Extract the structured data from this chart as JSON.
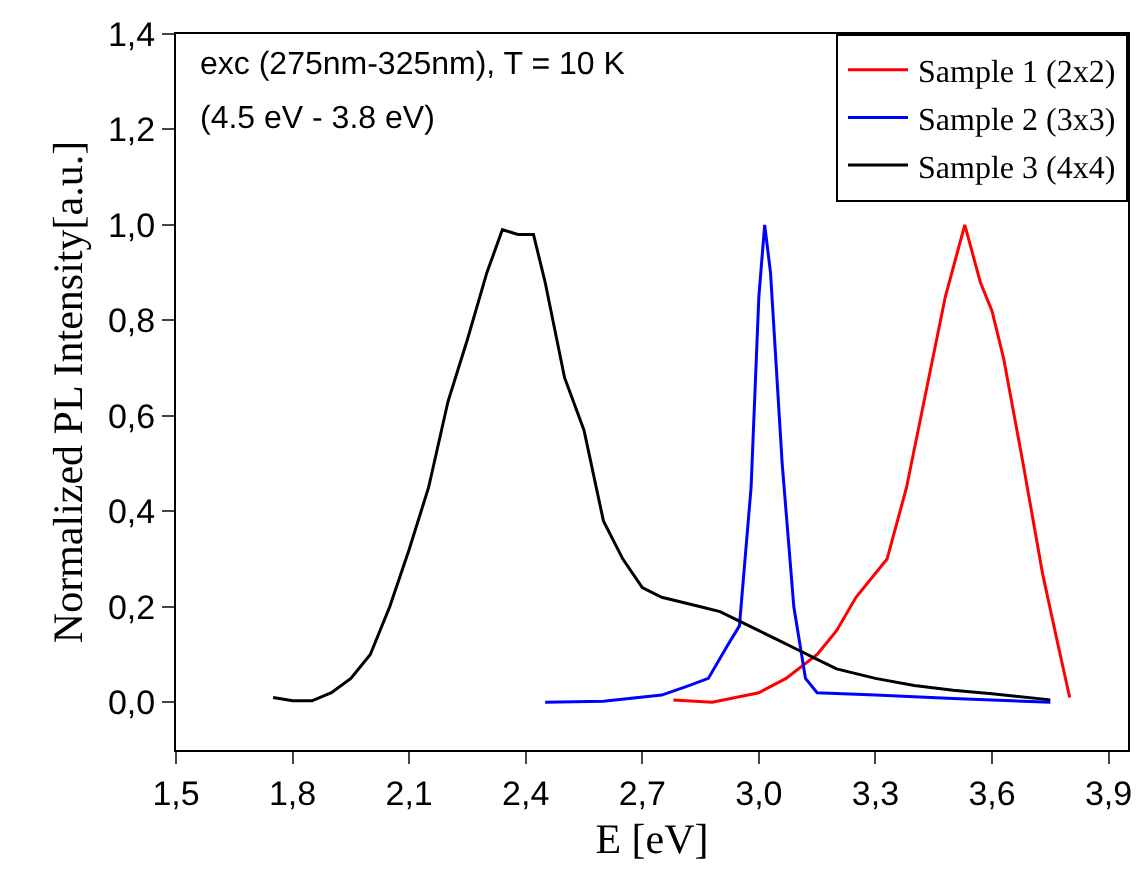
{
  "chart_data": {
    "type": "line",
    "xlabel": "E [eV]",
    "ylabel": "Normalized PL Intensity[a.u.]",
    "annotations": [
      "exc (275nm-325nm), T = 10 K",
      "(4.5 eV - 3.8 eV)"
    ],
    "xlim": [
      1.5,
      3.95
    ],
    "ylim": [
      -0.1,
      1.4
    ],
    "xticks": [
      {
        "value": 1.5,
        "label": "1,5"
      },
      {
        "value": 1.8,
        "label": "1,8"
      },
      {
        "value": 2.1,
        "label": "2,1"
      },
      {
        "value": 2.4,
        "label": "2,4"
      },
      {
        "value": 2.7,
        "label": "2,7"
      },
      {
        "value": 3.0,
        "label": "3,0"
      },
      {
        "value": 3.3,
        "label": "3,3"
      },
      {
        "value": 3.6,
        "label": "3,6"
      },
      {
        "value": 3.9,
        "label": "3,9"
      }
    ],
    "yticks": [
      {
        "value": 0,
        "label": "0,0"
      },
      {
        "value": 0.2,
        "label": "0,2"
      },
      {
        "value": 0.4,
        "label": "0,4"
      },
      {
        "value": 0.6,
        "label": "0,6"
      },
      {
        "value": 0.8,
        "label": "0,8"
      },
      {
        "value": 1.0,
        "label": "1,0"
      },
      {
        "value": 1.2,
        "label": "1,2"
      },
      {
        "value": 1.4,
        "label": "1,4"
      }
    ],
    "legend": "top right",
    "marker": "none",
    "line_style": "solid",
    "series": [
      {
        "name": "Sample 1 (2x2)",
        "color": "#ff0000",
        "x": [
          2.78,
          2.88,
          3.0,
          3.07,
          3.15,
          3.2,
          3.25,
          3.33,
          3.38,
          3.43,
          3.48,
          3.53,
          3.57,
          3.6,
          3.63,
          3.68,
          3.73,
          3.77,
          3.8
        ],
        "values": [
          0.005,
          0.0,
          0.02,
          0.05,
          0.1,
          0.15,
          0.22,
          0.3,
          0.45,
          0.65,
          0.85,
          1.0,
          0.88,
          0.82,
          0.72,
          0.5,
          0.27,
          0.12,
          0.01
        ]
      },
      {
        "name": "Sample 2 (3x3)",
        "color": "#0000ff",
        "x": [
          2.45,
          2.6,
          2.75,
          2.82,
          2.87,
          2.92,
          2.95,
          2.98,
          3.0,
          3.015,
          3.03,
          3.06,
          3.09,
          3.12,
          3.15,
          3.3,
          3.5,
          3.75
        ],
        "values": [
          0.0,
          0.002,
          0.015,
          0.035,
          0.05,
          0.12,
          0.16,
          0.45,
          0.85,
          1.0,
          0.9,
          0.5,
          0.2,
          0.05,
          0.02,
          0.015,
          0.008,
          0.0
        ]
      },
      {
        "name": "Sample 3 (4x4)",
        "color": "#000000",
        "x": [
          1.75,
          1.8,
          1.85,
          1.9,
          1.95,
          2.0,
          2.05,
          2.1,
          2.15,
          2.2,
          2.25,
          2.3,
          2.34,
          2.38,
          2.42,
          2.45,
          2.5,
          2.55,
          2.6,
          2.65,
          2.7,
          2.75,
          2.8,
          2.85,
          2.9,
          2.95,
          3.0,
          3.05,
          3.1,
          3.15,
          3.2,
          3.3,
          3.4,
          3.5,
          3.6,
          3.75
        ],
        "values": [
          0.01,
          0.003,
          0.003,
          0.02,
          0.05,
          0.1,
          0.2,
          0.32,
          0.45,
          0.63,
          0.76,
          0.9,
          0.99,
          0.98,
          0.98,
          0.88,
          0.68,
          0.57,
          0.38,
          0.3,
          0.24,
          0.22,
          0.21,
          0.2,
          0.19,
          0.17,
          0.15,
          0.13,
          0.11,
          0.09,
          0.07,
          0.05,
          0.035,
          0.025,
          0.018,
          0.005
        ]
      }
    ]
  }
}
